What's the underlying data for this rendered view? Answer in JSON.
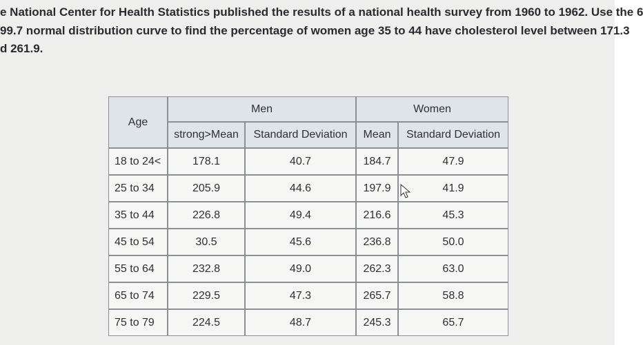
{
  "question": {
    "lines": [
      "e National Center for Health Statistics published the results of a national health survey from 1960 to 1962. Use the 6",
      "99.7 normal distribution curve to find the percentage of women age 35 to 44 have cholesterol level between 171.3",
      "d 261.9."
    ]
  },
  "table": {
    "age_header": "Age",
    "groups": [
      "Men",
      "Women"
    ],
    "columns": [
      "strong>Mean",
      "Standard Deviation",
      "Mean",
      "Standard Deviation"
    ],
    "rows": [
      [
        "18 to 24<",
        "178.1",
        "40.7",
        "184.7",
        "47.9"
      ],
      [
        "25 to 34",
        "205.9",
        "44.6",
        "197.9",
        "41.9"
      ],
      [
        "35 to 44",
        "226.8",
        "49.4",
        "216.6",
        "45.3"
      ],
      [
        "45 to 54",
        "30.5",
        "45.6",
        "236.8",
        "50.0"
      ],
      [
        "55 to 64",
        "232.8",
        "49.0",
        "262.3",
        "63.0"
      ],
      [
        "65 to 74",
        "229.5",
        "47.3",
        "265.7",
        "58.8"
      ],
      [
        "75 to 79",
        "224.5",
        "48.7",
        "245.3",
        "65.7"
      ]
    ]
  }
}
